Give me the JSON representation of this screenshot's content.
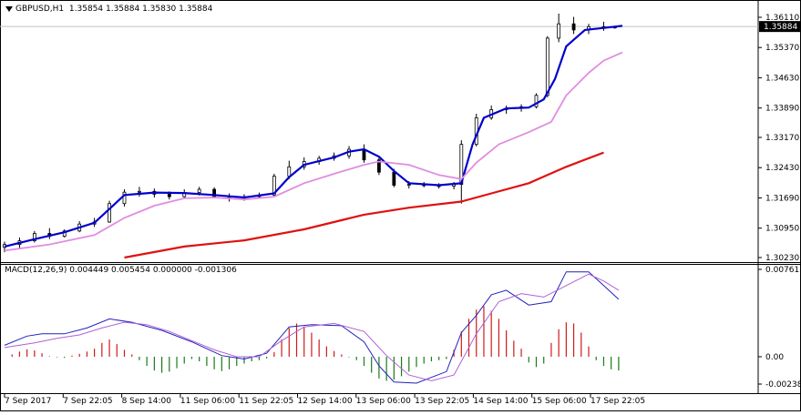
{
  "symbol_title": "GBPUSD,H1",
  "ohlc_text": "1.35854 1.35884 1.35830 1.35884",
  "macd_title": "MACD(12,26,9)",
  "macd_values_text": "0.004449 0.005454 0.000000 -0.001306",
  "colors": {
    "candle": "#000000",
    "ma_fast": "#0000cd",
    "ma_mid": "#e08ce0",
    "ma_slow": "#e01010",
    "macd_pos": "#d01a1a",
    "macd_neg": "#1a7a1a",
    "macd_line": "#2222bb",
    "signal_line": "#b060d8",
    "current_price_label_bg": "#000000"
  },
  "chart_data": [
    {
      "type": "line",
      "name": "price",
      "title": "GBPUSD,H1",
      "y_ticks": [
        "1.36110",
        "1.35370",
        "1.34630",
        "1.33890",
        "1.33170",
        "1.32430",
        "1.31690",
        "1.30950",
        "1.30230"
      ],
      "ylim": [
        1.3023,
        1.3611
      ],
      "current_price": "1.35884",
      "x_labels": [
        "7 Sep 2017",
        "7 Sep 22:05",
        "8 Sep 14:00",
        "11 Sep 06:00",
        "11 Sep 22:05",
        "12 Sep 14:00",
        "13 Sep 06:00",
        "13 Sep 22:05",
        "14 Sep 14:00",
        "15 Sep 06:00",
        "17 Sep 22:05"
      ],
      "x_index_range": [
        0,
        165
      ],
      "candles": [
        [
          0,
          1.3048,
          1.3062,
          1.3036,
          1.3055
        ],
        [
          4,
          1.3055,
          1.3072,
          1.3046,
          1.3064
        ],
        [
          8,
          1.3064,
          1.3088,
          1.306,
          1.3082
        ],
        [
          12,
          1.3082,
          1.3095,
          1.3068,
          1.3075
        ],
        [
          16,
          1.3075,
          1.3092,
          1.3072,
          1.3088
        ],
        [
          20,
          1.3088,
          1.3112,
          1.3085,
          1.3105
        ],
        [
          24,
          1.3105,
          1.312,
          1.3098,
          1.311
        ],
        [
          28,
          1.311,
          1.3162,
          1.3108,
          1.3155
        ],
        [
          32,
          1.3155,
          1.319,
          1.3148,
          1.3183
        ],
        [
          36,
          1.3183,
          1.3196,
          1.3172,
          1.3185
        ],
        [
          40,
          1.3185,
          1.3192,
          1.317,
          1.3178
        ],
        [
          44,
          1.3178,
          1.3185,
          1.3165,
          1.3172
        ],
        [
          48,
          1.3172,
          1.319,
          1.3168,
          1.3182
        ],
        [
          52,
          1.3182,
          1.3196,
          1.3175,
          1.319
        ],
        [
          56,
          1.319,
          1.3195,
          1.3168,
          1.3172
        ],
        [
          60,
          1.3172,
          1.318,
          1.316,
          1.3168
        ],
        [
          64,
          1.3168,
          1.3178,
          1.3162,
          1.3172
        ],
        [
          68,
          1.3172,
          1.3182,
          1.3168,
          1.3176
        ],
        [
          72,
          1.3176,
          1.3228,
          1.3172,
          1.3222
        ],
        [
          76,
          1.3222,
          1.326,
          1.3215,
          1.3245
        ],
        [
          80,
          1.3245,
          1.3268,
          1.3238,
          1.3258
        ],
        [
          84,
          1.3258,
          1.3272,
          1.325,
          1.3266
        ],
        [
          88,
          1.3266,
          1.328,
          1.326,
          1.3272
        ],
        [
          92,
          1.3272,
          1.3296,
          1.3265,
          1.3288
        ],
        [
          96,
          1.3288,
          1.33,
          1.3255,
          1.3262
        ],
        [
          100,
          1.3262,
          1.3268,
          1.3225,
          1.3232
        ],
        [
          104,
          1.3232,
          1.324,
          1.3195,
          1.32
        ],
        [
          108,
          1.32,
          1.321,
          1.3192,
          1.3202
        ],
        [
          112,
          1.3202,
          1.3208,
          1.3195,
          1.3199
        ],
        [
          116,
          1.3199,
          1.3205,
          1.3192,
          1.3198
        ],
        [
          120,
          1.3198,
          1.3208,
          1.319,
          1.3202
        ],
        [
          122,
          1.3202,
          1.331,
          1.3155,
          1.33
        ],
        [
          126,
          1.33,
          1.3375,
          1.3295,
          1.3365
        ],
        [
          130,
          1.3365,
          1.3395,
          1.336,
          1.3385
        ],
        [
          134,
          1.3385,
          1.3395,
          1.3375,
          1.3388
        ],
        [
          138,
          1.3388,
          1.3398,
          1.338,
          1.3392
        ],
        [
          142,
          1.3392,
          1.3425,
          1.3388,
          1.342
        ],
        [
          145,
          1.342,
          1.3565,
          1.3415,
          1.356
        ],
        [
          148,
          1.356,
          1.362,
          1.355,
          1.3595
        ],
        [
          152,
          1.3595,
          1.3612,
          1.357,
          1.358
        ],
        [
          156,
          1.358,
          1.3595,
          1.357,
          1.3588
        ],
        [
          160,
          1.3588,
          1.36,
          1.3578,
          1.3588
        ],
        [
          163,
          1.3585,
          1.3588,
          1.3583,
          1.3588
        ]
      ],
      "series": [
        {
          "name": "",
          "color": "#0000cd",
          "x": [
            0,
            8,
            16,
            24,
            28,
            32,
            40,
            48,
            56,
            64,
            72,
            76,
            80,
            88,
            92,
            96,
            100,
            104,
            108,
            116,
            122,
            125,
            128,
            134,
            140,
            144,
            147,
            150,
            155,
            160,
            165
          ],
          "values": [
            1.305,
            1.3068,
            1.3085,
            1.3108,
            1.3142,
            1.3176,
            1.3182,
            1.3181,
            1.3176,
            1.317,
            1.318,
            1.322,
            1.325,
            1.3268,
            1.3282,
            1.3288,
            1.327,
            1.3235,
            1.3205,
            1.32,
            1.3205,
            1.33,
            1.3365,
            1.3388,
            1.339,
            1.341,
            1.346,
            1.354,
            1.358,
            1.3585,
            1.359
          ]
        },
        {
          "name": "",
          "color": "#e08ce0",
          "x": [
            0,
            12,
            24,
            32,
            40,
            48,
            56,
            64,
            72,
            80,
            88,
            96,
            100,
            108,
            116,
            122,
            126,
            132,
            140,
            146,
            150,
            156,
            160,
            165
          ],
          "values": [
            1.304,
            1.3055,
            1.3078,
            1.312,
            1.315,
            1.3168,
            1.317,
            1.3165,
            1.3172,
            1.3205,
            1.3228,
            1.325,
            1.3258,
            1.325,
            1.3225,
            1.3215,
            1.3255,
            1.33,
            1.333,
            1.3355,
            1.342,
            1.3475,
            1.3505,
            1.3525
          ]
        },
        {
          "name": "",
          "color": "#e01010",
          "x": [
            32,
            48,
            64,
            80,
            96,
            108,
            122,
            130,
            140,
            145,
            150,
            160
          ],
          "values": [
            1.3023,
            1.305,
            1.3065,
            1.3092,
            1.3128,
            1.3145,
            1.316,
            1.318,
            1.3205,
            1.3225,
            1.3245,
            1.328
          ]
        }
      ]
    },
    {
      "type": "bar",
      "name": "macd",
      "title": "MACD(12,26,9)",
      "y_ticks": [
        "0.007613",
        "0.00",
        "-0.002383"
      ],
      "ylim": [
        -0.002383,
        0.007613
      ],
      "histogram": [
        [
          2,
          0.0002
        ],
        [
          4,
          0.00045
        ],
        [
          6,
          0.00065
        ],
        [
          8,
          0.00055
        ],
        [
          10,
          0.0003
        ],
        [
          12,
          5e-05
        ],
        [
          14,
          -5e-05
        ],
        [
          16,
          -0.0001
        ],
        [
          18,
          0.0001
        ],
        [
          20,
          0.00025
        ],
        [
          22,
          0.00045
        ],
        [
          24,
          0.0007
        ],
        [
          26,
          0.0012
        ],
        [
          28,
          0.0015
        ],
        [
          30,
          0.0011
        ],
        [
          32,
          0.0006
        ],
        [
          34,
          0.0002
        ],
        [
          36,
          -0.0003
        ],
        [
          38,
          -0.0008
        ],
        [
          40,
          -0.0012
        ],
        [
          42,
          -0.0014
        ],
        [
          44,
          -0.0013
        ],
        [
          46,
          -0.001
        ],
        [
          48,
          -0.0006
        ],
        [
          50,
          -0.0002
        ],
        [
          52,
          -0.0004
        ],
        [
          54,
          -0.0008
        ],
        [
          56,
          -0.0011
        ],
        [
          58,
          -0.00125
        ],
        [
          60,
          -0.0011
        ],
        [
          62,
          -0.0008
        ],
        [
          64,
          -0.0006
        ],
        [
          66,
          -0.0004
        ],
        [
          68,
          -0.0003
        ],
        [
          70,
          -0.00015
        ],
        [
          72,
          0.0004
        ],
        [
          74,
          0.0015
        ],
        [
          76,
          0.0025
        ],
        [
          78,
          0.0029
        ],
        [
          80,
          0.0026
        ],
        [
          82,
          0.0021
        ],
        [
          84,
          0.0015
        ],
        [
          86,
          0.0009
        ],
        [
          88,
          0.0005
        ],
        [
          90,
          0.0002
        ],
        [
          92,
          -5e-05
        ],
        [
          94,
          -0.0003
        ],
        [
          96,
          -0.0008
        ],
        [
          98,
          -0.0014
        ],
        [
          100,
          -0.0019
        ],
        [
          102,
          -0.0021
        ],
        [
          104,
          -0.002
        ],
        [
          106,
          -0.0017
        ],
        [
          108,
          -0.0013
        ],
        [
          110,
          -0.0009
        ],
        [
          112,
          -0.0006
        ],
        [
          114,
          -0.0004
        ],
        [
          116,
          -0.0003
        ],
        [
          118,
          -0.0002
        ],
        [
          120,
          0.0006
        ],
        [
          122,
          0.0022
        ],
        [
          124,
          0.0033
        ],
        [
          126,
          0.0041
        ],
        [
          128,
          0.0044
        ],
        [
          130,
          0.004
        ],
        [
          132,
          0.0033
        ],
        [
          134,
          0.0023
        ],
        [
          136,
          0.0014
        ],
        [
          138,
          0.0007
        ],
        [
          140,
          -0.0005
        ],
        [
          142,
          -0.0009
        ],
        [
          144,
          -0.0006
        ],
        [
          146,
          0.0012
        ],
        [
          148,
          0.0024
        ],
        [
          150,
          0.003
        ],
        [
          152,
          0.0029
        ],
        [
          154,
          0.0021
        ],
        [
          156,
          0.0009
        ],
        [
          158,
          -0.0003
        ],
        [
          160,
          -0.0008
        ],
        [
          162,
          -0.0011
        ],
        [
          164,
          -0.0012
        ]
      ],
      "series": [
        {
          "name": "",
          "color": "#2222bb",
          "x": [
            0,
            6,
            10,
            16,
            22,
            28,
            34,
            42,
            50,
            58,
            64,
            70,
            76,
            82,
            90,
            96,
            100,
            104,
            110,
            118,
            122,
            126,
            130,
            134,
            140,
            146,
            150,
            156,
            160,
            164
          ],
          "values": [
            0.001,
            0.0018,
            0.002,
            0.002,
            0.0025,
            0.0033,
            0.003,
            0.0023,
            0.0013,
            0.0001,
            -0.0002,
            0.0003,
            0.0026,
            0.0028,
            0.0027,
            0.0013,
            -0.0008,
            -0.0022,
            -0.0023,
            -0.0013,
            0.0021,
            0.0036,
            0.0054,
            0.0058,
            0.0045,
            0.0048,
            0.0074,
            0.0074,
            0.0062,
            0.005
          ]
        },
        {
          "name": "",
          "color": "#b060d8",
          "x": [
            0,
            8,
            14,
            20,
            26,
            32,
            38,
            44,
            50,
            56,
            62,
            68,
            74,
            80,
            88,
            96,
            102,
            108,
            114,
            120,
            126,
            132,
            138,
            144,
            150,
            156,
            160,
            164
          ],
          "values": [
            0.0008,
            0.0012,
            0.0016,
            0.0019,
            0.0025,
            0.003,
            0.0028,
            0.0022,
            0.0014,
            0.0006,
            0.0,
            0.0,
            0.0014,
            0.0026,
            0.0029,
            0.0022,
            0.0001,
            -0.0016,
            -0.0021,
            -0.0016,
            0.002,
            0.0048,
            0.0055,
            0.0052,
            0.0062,
            0.0072,
            0.0066,
            0.0058
          ]
        }
      ]
    }
  ]
}
